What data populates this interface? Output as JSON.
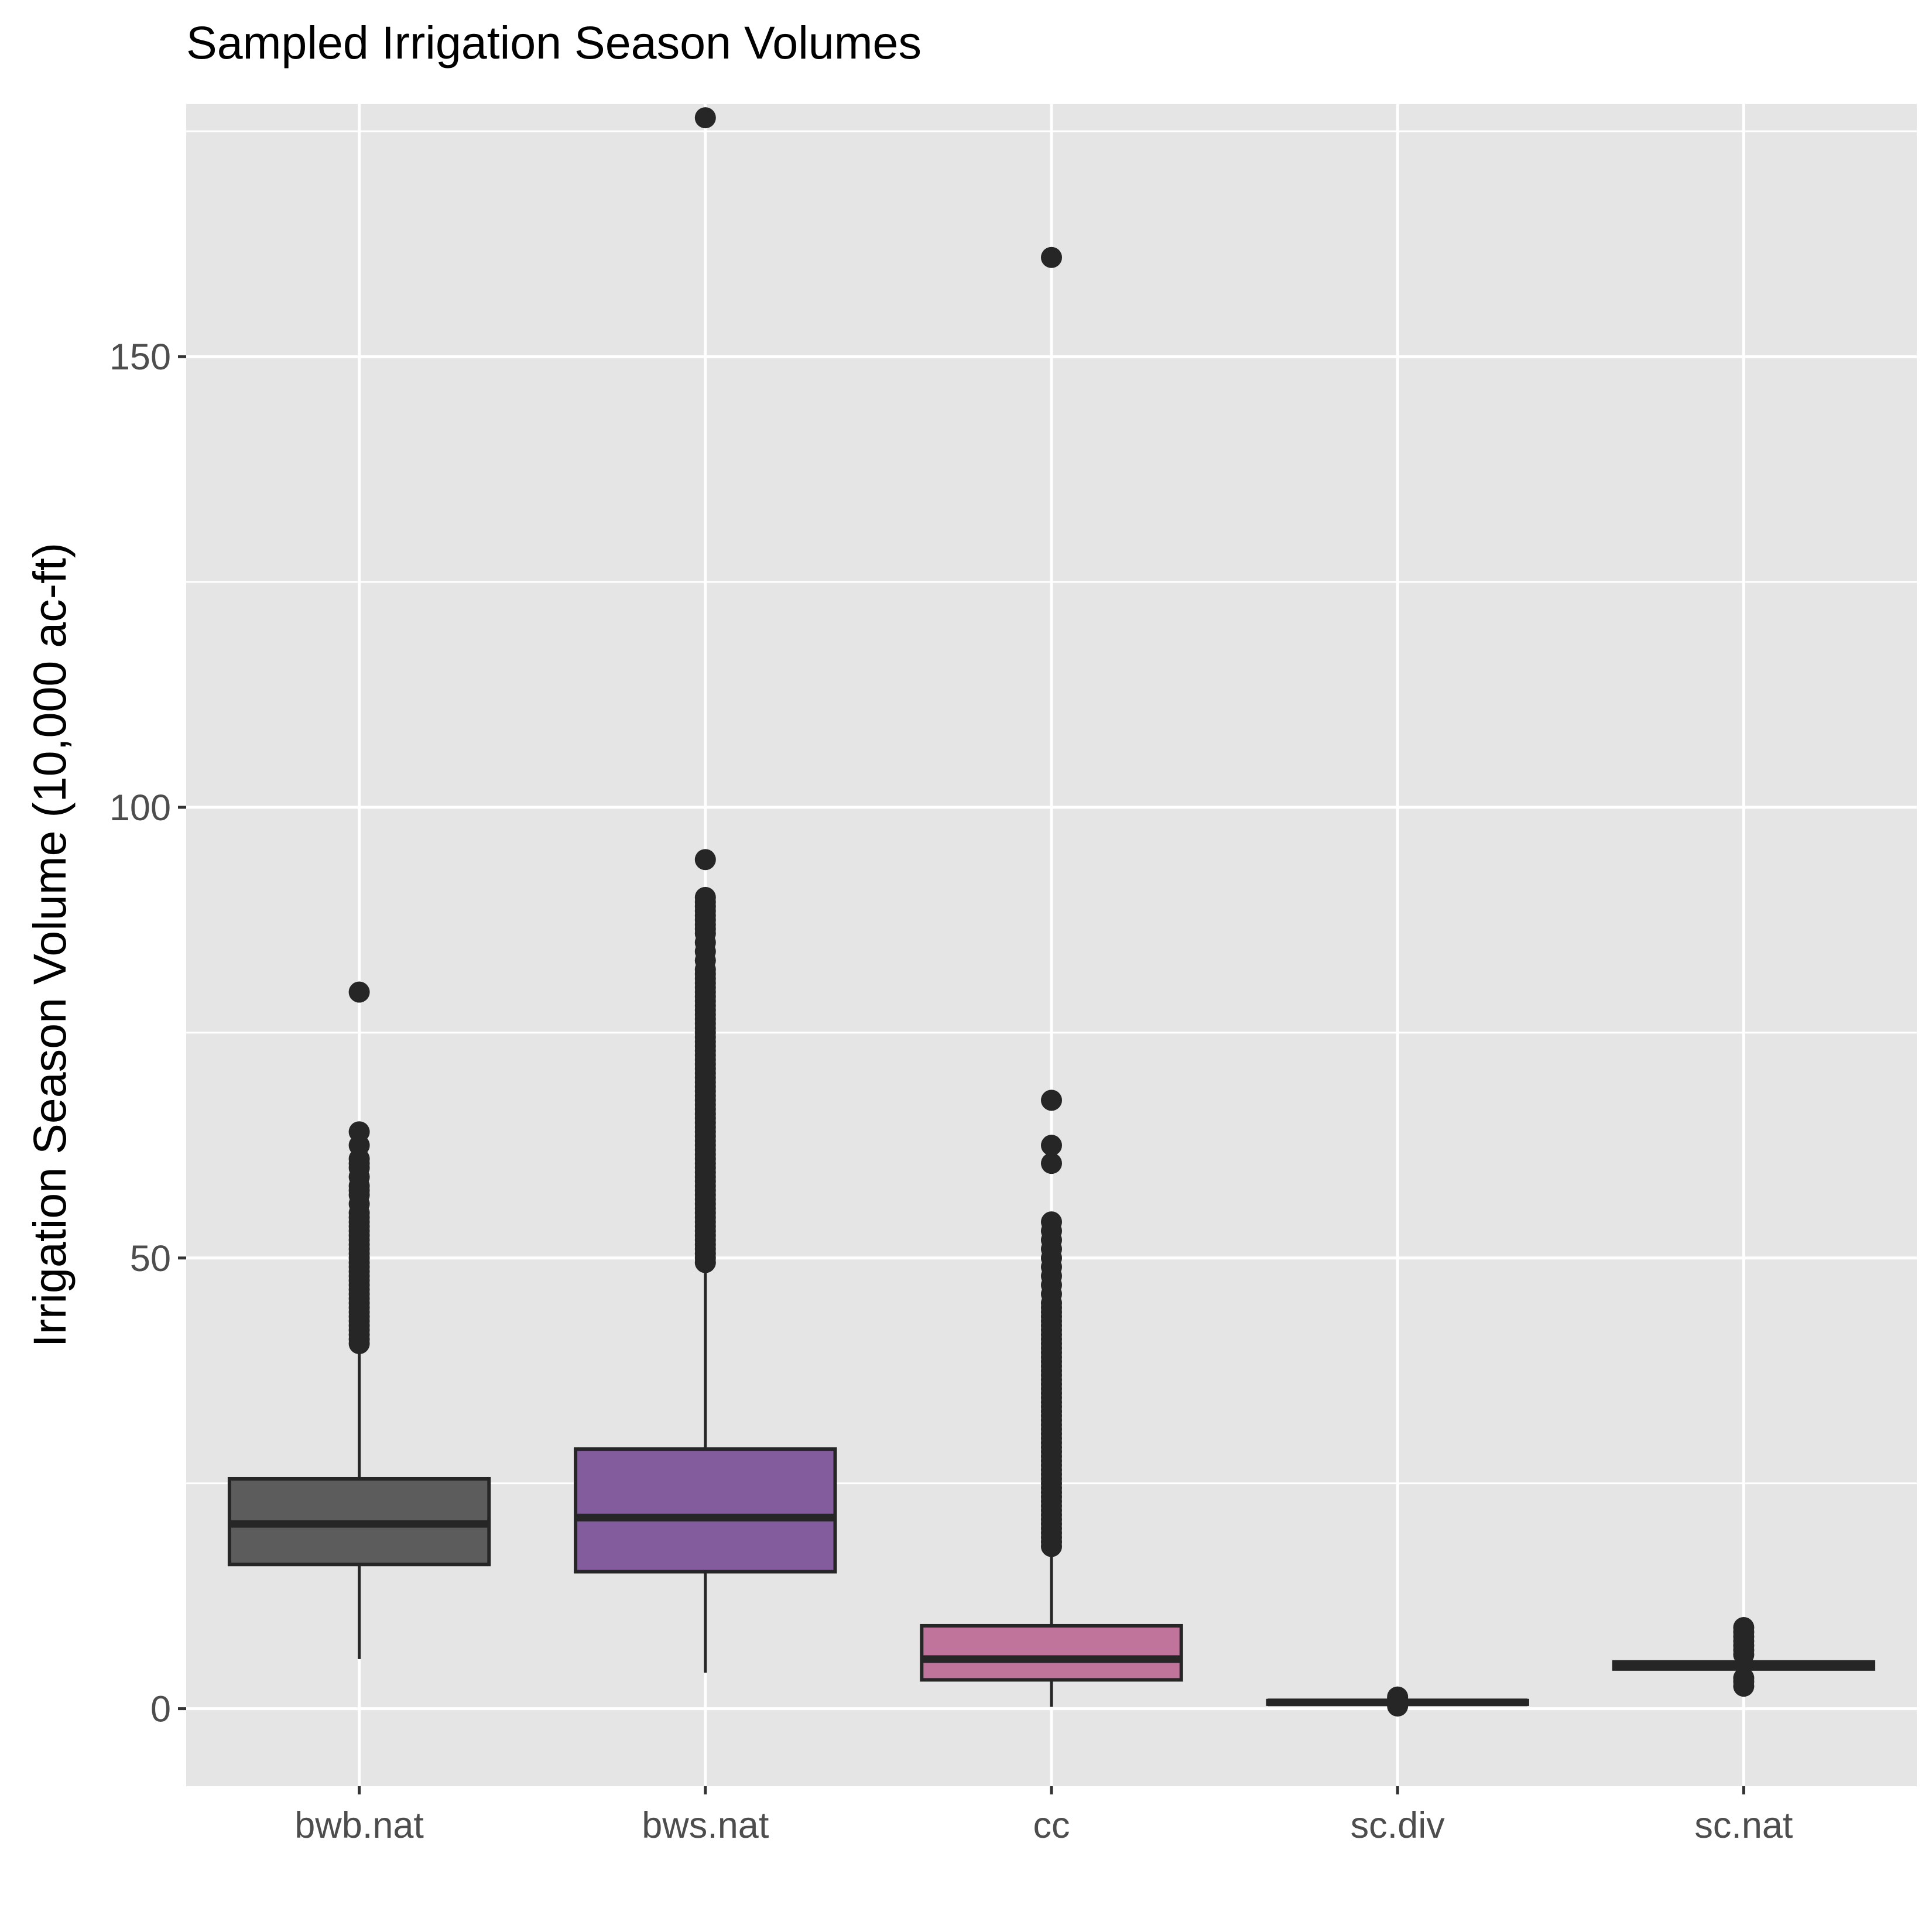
{
  "chart_data": {
    "type": "boxplot",
    "title": "Sampled Irrigation Season Volumes",
    "xlabel": "",
    "ylabel": "Irrigation Season Volume (10,000 ac-ft)",
    "ylim": [
      -8.6,
      178
    ],
    "yticks": [
      0,
      50,
      100,
      150
    ],
    "grid": true,
    "legend": "none",
    "panel_color": "#e5e5e5",
    "grid_color": "#ffffff",
    "outline_color": "#262626",
    "categories": [
      "bwb.nat",
      "bws.nat",
      "cc",
      "sc.div",
      "sc.nat"
    ],
    "boxes": [
      {
        "category": "bwb.nat",
        "fill": "#5c5c5c",
        "whisker_low": 5.5,
        "q1": 16,
        "median": 20.5,
        "q3": 25.5,
        "whisker_high": 40,
        "outliers": [
          40.5,
          41,
          41.5,
          42,
          42.5,
          43,
          43.5,
          44,
          44.5,
          45,
          45.5,
          46,
          46.5,
          47,
          47.5,
          48,
          48.5,
          49,
          49.5,
          50,
          50.5,
          51,
          51.5,
          52,
          52.5,
          53,
          53.5,
          54,
          54.5,
          55,
          56,
          57,
          57.5,
          58,
          59,
          60,
          60.5,
          61,
          62.5,
          64,
          79.5
        ]
      },
      {
        "category": "bws.nat",
        "fill": "#825c9c",
        "whisker_low": 4,
        "q1": 15.2,
        "median": 21.2,
        "q3": 28.8,
        "whisker_high": 49,
        "outliers": [
          49.5,
          50,
          50.5,
          51,
          51.5,
          52,
          52.5,
          53,
          53.5,
          54,
          54.5,
          55,
          55.5,
          56,
          56.5,
          57,
          57.5,
          58,
          58.5,
          59,
          59.5,
          60,
          60.5,
          61,
          61.5,
          62,
          62.5,
          63,
          63.5,
          64,
          64.5,
          65,
          65.5,
          66,
          66.5,
          67,
          67.5,
          68,
          68.5,
          69,
          69.5,
          70,
          70.5,
          71,
          71.5,
          72,
          72.5,
          73,
          73.5,
          74,
          74.5,
          75,
          75.5,
          76,
          76.5,
          77,
          77.5,
          78,
          78.5,
          79,
          79.5,
          80,
          80.5,
          81,
          81.5,
          82,
          83,
          84,
          85,
          86,
          86.5,
          87,
          87.5,
          88,
          88.5,
          89,
          89.5,
          90,
          94.2,
          176.5
        ]
      },
      {
        "category": "cc",
        "fill": "#c0749c",
        "whisker_low": 0.2,
        "q1": 3.2,
        "median": 5.5,
        "q3": 9.2,
        "whisker_high": 17.5,
        "outliers": [
          18,
          18.5,
          19,
          19.5,
          20,
          20.5,
          21,
          21.5,
          22,
          22.5,
          23,
          23.5,
          24,
          24.5,
          25,
          25.5,
          26,
          26.5,
          27,
          27.5,
          28,
          28.5,
          29,
          29.5,
          30,
          30.5,
          31,
          31.5,
          32,
          32.5,
          33,
          33.5,
          34,
          34.5,
          35,
          35.5,
          36,
          36.5,
          37,
          37.5,
          38,
          38.5,
          39,
          39.5,
          40,
          40.5,
          41,
          41.5,
          42,
          42.5,
          43,
          43.5,
          44,
          44.5,
          45,
          46,
          47,
          48,
          49,
          50,
          51,
          52,
          53,
          54,
          60.5,
          62.5,
          67.5,
          161
        ]
      },
      {
        "category": "sc.div",
        "fill": "#262626",
        "whisker_low": 0.4,
        "q1": 0.5,
        "median": 0.7,
        "q3": 0.9,
        "whisker_high": 1.0,
        "outliers": [
          0.3,
          0.5,
          0.8,
          1.1,
          1.3
        ]
      },
      {
        "category": "sc.nat",
        "fill": "#262626",
        "whisker_low": 4.2,
        "q1": 4.4,
        "median": 4.8,
        "q3": 5.2,
        "whisker_high": 5.4,
        "outliers": [
          2.5,
          3.0,
          3.4,
          6.0,
          6.5,
          7.0,
          7.5,
          8.0,
          8.5,
          9.0
        ]
      }
    ]
  }
}
